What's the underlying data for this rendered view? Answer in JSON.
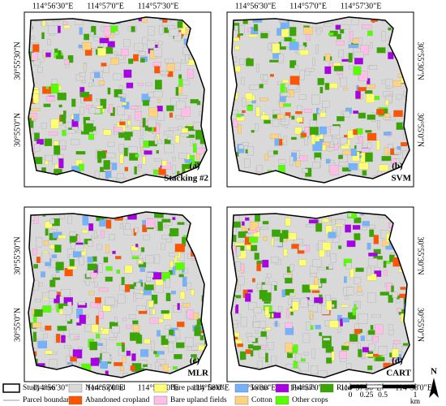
{
  "panels": [
    {
      "label": "(a)",
      "method": "Stacking #2"
    },
    {
      "label": "(b)",
      "method": "SVM"
    },
    {
      "label": "(c)",
      "method": "MLR"
    },
    {
      "label": "(d)",
      "method": "CART"
    }
  ],
  "top_longitudes": [
    "114°56'30\"E",
    "114°57'0\"E",
    "114°57'30\"E"
  ],
  "bottom_longitudes": [
    "114°56'30\"E",
    "114°57'0\"E",
    "114°57'30\"E",
    "114°58'0\"E"
  ],
  "latitudes": [
    "30°55'30\"N",
    "30°55'0\"N"
  ],
  "legend": {
    "study_area": "Study area",
    "parcel_boundary": "Parcel boundary",
    "classes": [
      [
        {
          "name": "Noncropland",
          "color": "#d9d9d9"
        },
        {
          "name": "Bare paddy fields",
          "color": "#ffff73"
        },
        {
          "name": "Lotus",
          "color": "#73b2ff"
        },
        {
          "name": "Peanuts",
          "color": "#a900e6"
        },
        {
          "name": "Rice",
          "color": "#38a800"
        }
      ],
      [
        {
          "name": "Abandoned cropland",
          "color": "#ff5500"
        },
        {
          "name": "Bare upland fields",
          "color": "#ffbee8"
        },
        {
          "name": "Cotton",
          "color": "#ffd37f"
        },
        {
          "name": "Other crops",
          "color": "#55ff00"
        }
      ]
    ]
  },
  "scale": {
    "ticks": [
      0,
      0.25,
      0.5,
      1
    ],
    "unit": "km"
  },
  "north": "N"
}
